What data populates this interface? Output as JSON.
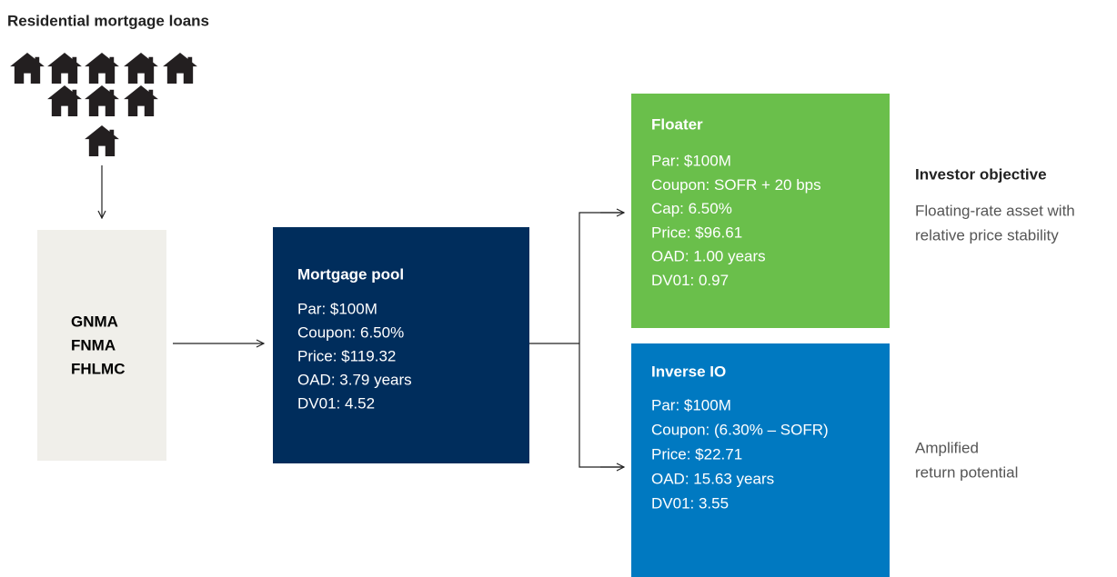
{
  "header": {
    "title": "Residential mortgage loans"
  },
  "agencies": {
    "lines": [
      "GNMA",
      "FNMA",
      "FHLMC"
    ]
  },
  "pool": {
    "title": "Mortgage pool",
    "lines": [
      "Par: $100M",
      "Coupon: 6.50%",
      "Price: $119.32",
      "OAD: 3.79 years",
      "DV01: 4.52"
    ]
  },
  "floater": {
    "title": "Floater",
    "lines": [
      "Par: $100M",
      "Coupon: SOFR + 20 bps",
      "Cap: 6.50%",
      "Price: $96.61",
      "OAD: 1.00 years",
      "DV01: 0.97"
    ]
  },
  "inverse_io": {
    "title": "Inverse IO",
    "lines": [
      "Par: $100M",
      "Coupon: (6.30% – SOFR)",
      "Price: $22.71",
      "OAD: 15.63 years",
      "DV01: 3.55"
    ]
  },
  "objectives": {
    "heading": "Investor objective",
    "floater": [
      "Floating-rate asset with",
      "relative price stability"
    ],
    "inverse_io": [
      "Amplified",
      "return potential"
    ]
  }
}
